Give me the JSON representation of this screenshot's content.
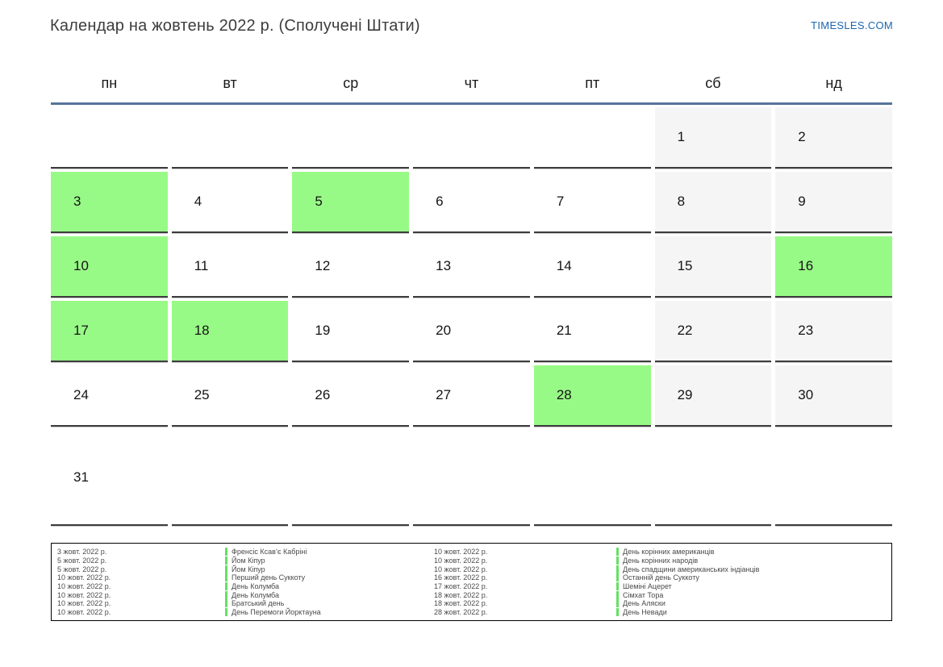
{
  "header": {
    "title": "Календар на жовтень 2022 р. (Сполучені Штати)",
    "brand_link": "TIMESLES.COM"
  },
  "weekdays": [
    "пн",
    "вт",
    "ср",
    "чт",
    "пт",
    "сб",
    "нд"
  ],
  "weeks": [
    {
      "cells": [
        {
          "day": "",
          "type": "empty"
        },
        {
          "day": "",
          "type": "empty"
        },
        {
          "day": "",
          "type": "empty"
        },
        {
          "day": "",
          "type": "empty"
        },
        {
          "day": "",
          "type": "empty"
        },
        {
          "day": "1",
          "type": "weekend"
        },
        {
          "day": "2",
          "type": "weekend"
        }
      ]
    },
    {
      "cells": [
        {
          "day": "3",
          "type": "holiday"
        },
        {
          "day": "4",
          "type": "normal"
        },
        {
          "day": "5",
          "type": "holiday"
        },
        {
          "day": "6",
          "type": "normal"
        },
        {
          "day": "7",
          "type": "normal"
        },
        {
          "day": "8",
          "type": "weekend"
        },
        {
          "day": "9",
          "type": "weekend"
        }
      ]
    },
    {
      "cells": [
        {
          "day": "10",
          "type": "holiday"
        },
        {
          "day": "11",
          "type": "normal"
        },
        {
          "day": "12",
          "type": "normal"
        },
        {
          "day": "13",
          "type": "normal"
        },
        {
          "day": "14",
          "type": "normal"
        },
        {
          "day": "15",
          "type": "weekend"
        },
        {
          "day": "16",
          "type": "holiday"
        }
      ]
    },
    {
      "cells": [
        {
          "day": "17",
          "type": "holiday"
        },
        {
          "day": "18",
          "type": "holiday"
        },
        {
          "day": "19",
          "type": "normal"
        },
        {
          "day": "20",
          "type": "normal"
        },
        {
          "day": "21",
          "type": "normal"
        },
        {
          "day": "22",
          "type": "weekend"
        },
        {
          "day": "23",
          "type": "weekend"
        }
      ]
    },
    {
      "cells": [
        {
          "day": "24",
          "type": "normal"
        },
        {
          "day": "25",
          "type": "normal"
        },
        {
          "day": "26",
          "type": "normal"
        },
        {
          "day": "27",
          "type": "normal"
        },
        {
          "day": "28",
          "type": "holiday"
        },
        {
          "day": "29",
          "type": "weekend"
        },
        {
          "day": "30",
          "type": "weekend"
        }
      ]
    },
    {
      "cells": [
        {
          "day": "31",
          "type": "normal"
        },
        {
          "day": "",
          "type": "empty"
        },
        {
          "day": "",
          "type": "empty"
        },
        {
          "day": "",
          "type": "empty"
        },
        {
          "day": "",
          "type": "empty"
        },
        {
          "day": "",
          "type": "empty"
        },
        {
          "day": "",
          "type": "empty"
        }
      ]
    }
  ],
  "legend": {
    "left": [
      {
        "date": "3 жовт. 2022 р.",
        "name": "Френсіс Ксав’є Кабріні"
      },
      {
        "date": "5 жовт. 2022 р.",
        "name": "Йом Кіпур"
      },
      {
        "date": "5 жовт. 2022 р.",
        "name": "Йом Кіпур"
      },
      {
        "date": "10 жовт. 2022 р.",
        "name": "Перший день Суккоту"
      },
      {
        "date": "10 жовт. 2022 р.",
        "name": "День Колумба"
      },
      {
        "date": "10 жовт. 2022 р.",
        "name": "День Колумба"
      },
      {
        "date": "10 жовт. 2022 р.",
        "name": "Братський день"
      },
      {
        "date": "10 жовт. 2022 р.",
        "name": "День Перемоги Йорктауна"
      }
    ],
    "right": [
      {
        "date": "10 жовт. 2022 р.",
        "name": "День корінних американців"
      },
      {
        "date": "10 жовт. 2022 р.",
        "name": "День корінних народів"
      },
      {
        "date": "10 жовт. 2022 р.",
        "name": "День спадщини американських індіанців"
      },
      {
        "date": "16 жовт. 2022 р.",
        "name": "Останній день Суккоту"
      },
      {
        "date": "17 жовт. 2022 р.",
        "name": "Шеміні Ацерет"
      },
      {
        "date": "18 жовт. 2022 р.",
        "name": "Сімхат Тора"
      },
      {
        "date": "18 жовт. 2022 р.",
        "name": "День Аляски"
      },
      {
        "date": "28 жовт. 2022 р.",
        "name": "День Невади"
      }
    ]
  },
  "colors": {
    "holiday_green": "#98fa86",
    "weekend_gray": "#f5f5f5",
    "header_line_blue": "#56749c",
    "brand_blue": "#1b66ae",
    "cell_border": "#3c3c3c",
    "legend_marker_green": "#64e064"
  }
}
